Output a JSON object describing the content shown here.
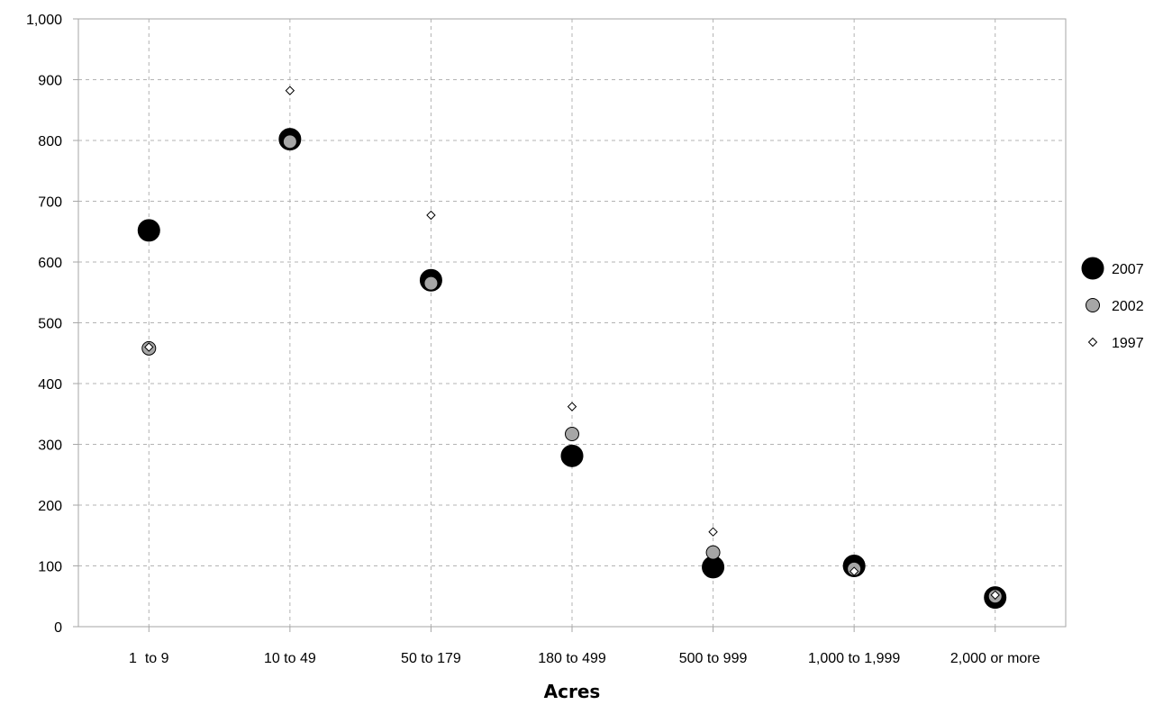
{
  "chart_data": {
    "type": "scatter",
    "xlabel": "Acres",
    "ylabel": "",
    "categories": [
      "1  to 9",
      "10 to 49",
      "50 to 179",
      "180 to 499",
      "500 to 999",
      "1,000 to 1,999",
      "2,000 or more"
    ],
    "ylim": [
      0,
      1000
    ],
    "yticks": [
      "0",
      "100",
      "200",
      "300",
      "400",
      "500",
      "600",
      "700",
      "800",
      "900",
      "1,000"
    ],
    "grid": true,
    "legend_position": "right",
    "series": [
      {
        "name": "2007",
        "values": [
          652,
          802,
          570,
          281,
          98,
          100,
          48
        ],
        "marker": "large-black-circle",
        "color": "#000000"
      },
      {
        "name": "2002",
        "values": [
          458,
          798,
          565,
          317,
          122,
          95,
          50
        ],
        "marker": "medium-gray-circle",
        "color": "#a6a6a6"
      },
      {
        "name": "1997",
        "values": [
          460,
          882,
          677,
          362,
          156,
          91,
          52
        ],
        "marker": "small-white-diamond",
        "color": "#ffffff"
      }
    ]
  }
}
